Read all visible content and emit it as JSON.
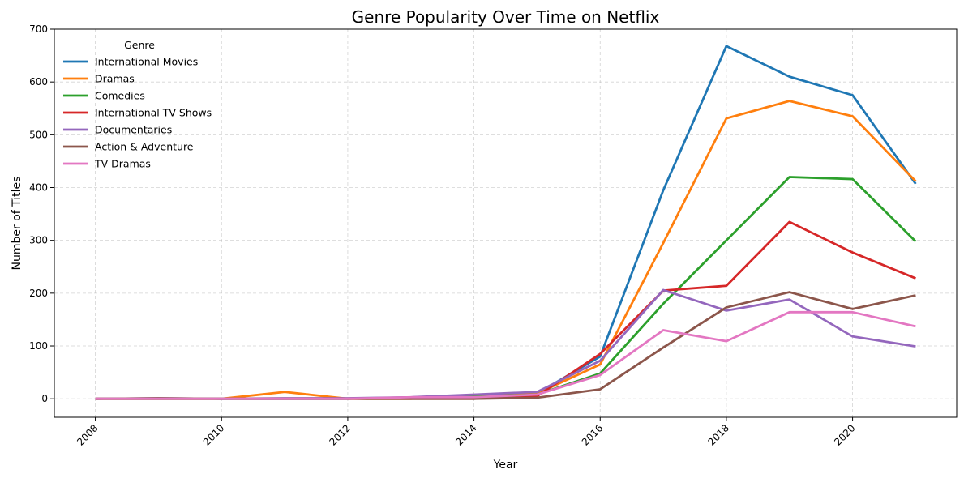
{
  "chart_data": {
    "type": "line",
    "title": "Genre Popularity Over Time on Netflix",
    "xlabel": "Year",
    "ylabel": "Number of Titles",
    "xlim": [
      2007.35,
      2021.65
    ],
    "ylim": [
      -35,
      700
    ],
    "x_ticks": [
      2008,
      2010,
      2012,
      2014,
      2016,
      2018,
      2020
    ],
    "x_tick_labels": [
      "2008",
      "2010",
      "2012",
      "2014",
      "2016",
      "2018",
      "2020"
    ],
    "y_ticks": [
      0,
      100,
      200,
      300,
      400,
      500,
      600,
      700
    ],
    "y_tick_labels": [
      "0",
      "100",
      "200",
      "300",
      "400",
      "500",
      "600",
      "700"
    ],
    "grid": true,
    "legend": {
      "title": "Genre",
      "placement": "top-left"
    },
    "x": [
      2008,
      2009,
      2010,
      2011,
      2012,
      2013,
      2014,
      2015,
      2016,
      2017,
      2018,
      2019,
      2020,
      2021
    ],
    "series": [
      {
        "name": "International Movies",
        "color": "#1f77b4",
        "values": [
          0,
          0,
          0,
          0,
          0,
          2,
          5,
          10,
          80,
          395,
          668,
          610,
          575,
          407
        ]
      },
      {
        "name": "Dramas",
        "color": "#ff7f0e",
        "values": [
          0,
          0,
          0,
          13,
          0,
          0,
          4,
          10,
          65,
          295,
          531,
          564,
          535,
          412
        ]
      },
      {
        "name": "Comedies",
        "color": "#2ca02c",
        "values": [
          0,
          0,
          0,
          0,
          0,
          2,
          4,
          8,
          48,
          180,
          300,
          420,
          416,
          298
        ]
      },
      {
        "name": "International TV Shows",
        "color": "#d62728",
        "values": [
          0,
          0,
          0,
          0,
          0,
          0,
          0,
          5,
          85,
          205,
          214,
          335,
          277,
          228
        ]
      },
      {
        "name": "Documentaries",
        "color": "#9467bd",
        "values": [
          0,
          1,
          0,
          1,
          1,
          3,
          8,
          13,
          72,
          206,
          167,
          188,
          118,
          99
        ]
      },
      {
        "name": "Action & Adventure",
        "color": "#8c564b",
        "values": [
          0,
          1,
          0,
          0,
          0,
          0,
          0,
          2,
          18,
          97,
          173,
          202,
          170,
          196
        ]
      },
      {
        "name": "TV Dramas",
        "color": "#e377c2",
        "values": [
          0,
          0,
          0,
          0,
          0,
          3,
          3,
          8,
          45,
          130,
          109,
          164,
          164,
          137
        ]
      }
    ]
  }
}
